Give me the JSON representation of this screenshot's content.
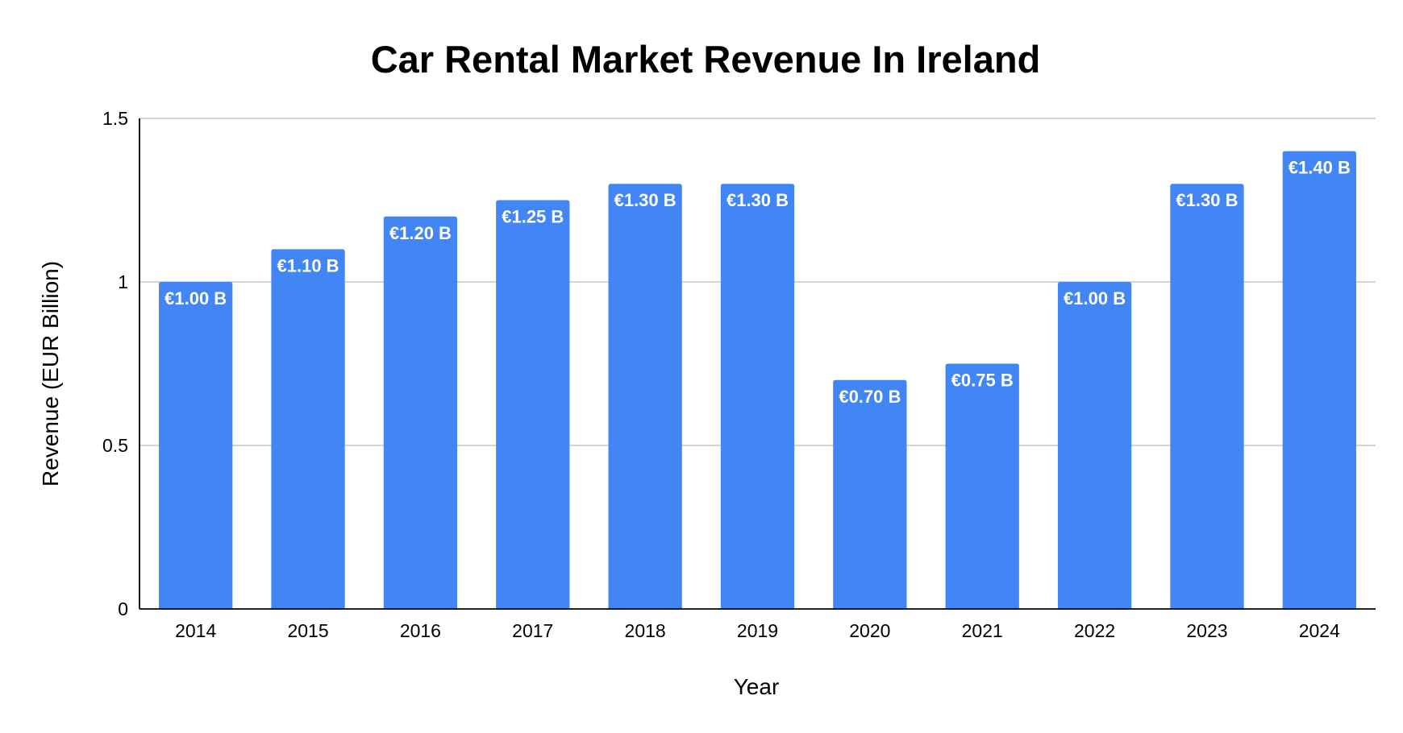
{
  "chart_data": {
    "type": "bar",
    "title": "Car Rental Market Revenue In Ireland",
    "xlabel": "Year",
    "ylabel": "Revenue (EUR Billion)",
    "categories": [
      "2014",
      "2015",
      "2016",
      "2017",
      "2018",
      "2019",
      "2020",
      "2021",
      "2022",
      "2023",
      "2024"
    ],
    "values": [
      1.0,
      1.1,
      1.2,
      1.25,
      1.3,
      1.3,
      0.7,
      0.75,
      1.0,
      1.3,
      1.4
    ],
    "data_labels": [
      "€1.00 B",
      "€1.10 B",
      "€1.20 B",
      "€1.25 B",
      "€1.30 B",
      "€1.30 B",
      "€0.70 B",
      "€0.75 B",
      "€1.00 B",
      "€1.30 B",
      "€1.40 B"
    ],
    "ylim": [
      0,
      1.5
    ],
    "yticks": [
      0,
      0.5,
      1,
      1.5
    ],
    "ytick_labels": [
      "0",
      "0.5",
      "1",
      "1.5"
    ],
    "grid": true,
    "legend": "none",
    "bar_color": "#4285f4"
  }
}
